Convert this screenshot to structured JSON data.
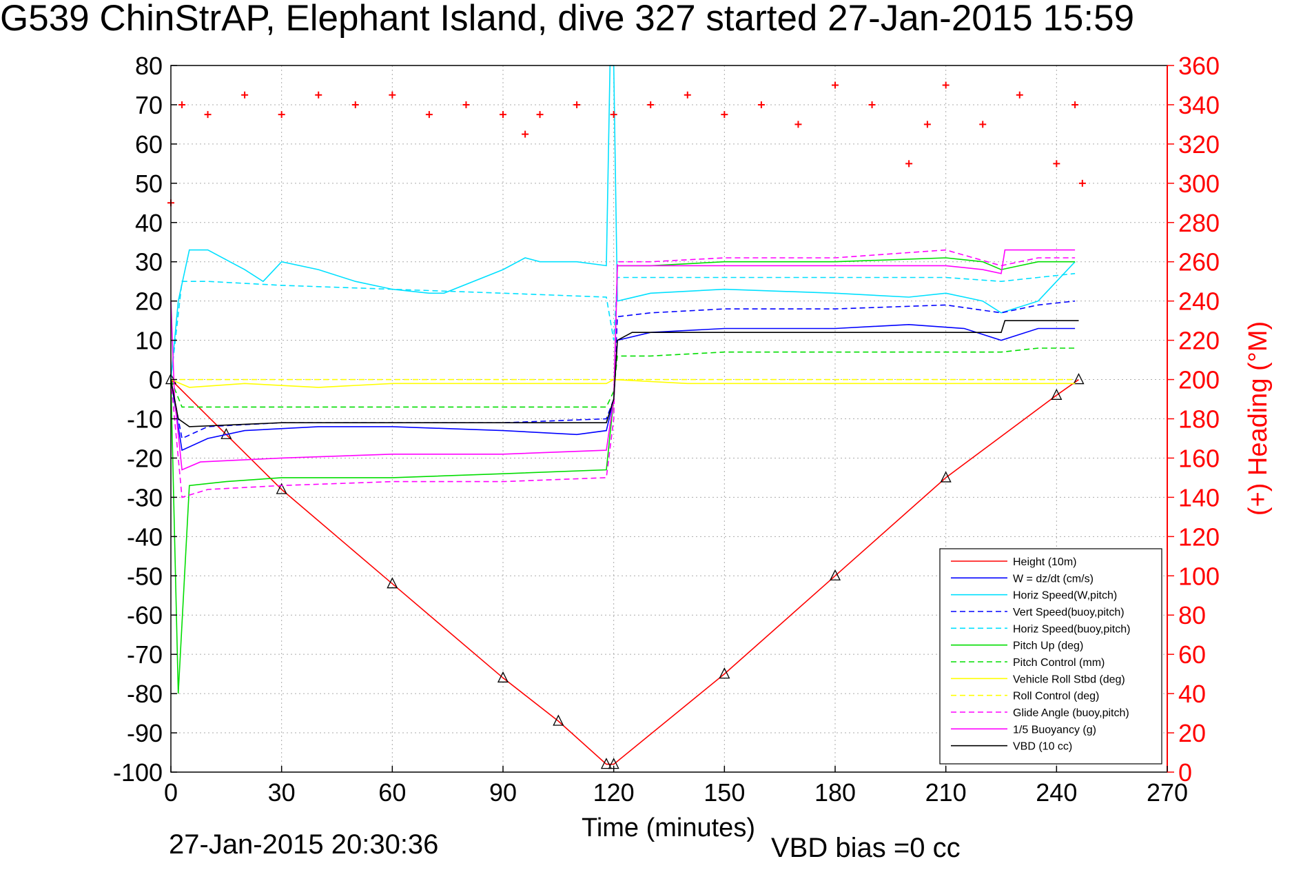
{
  "title": "G539 ChinStrAP, Elephant Island, dive 327 started 27-Jan-2015 15:59",
  "footer": {
    "timestamp": "27-Jan-2015 20:30:36",
    "vbd_bias": "VBD bias =0 cc"
  },
  "colors": {
    "red": "#ff0000",
    "blue": "#0000ff",
    "cyan": "#00e0ff",
    "green": "#00dd00",
    "yellow": "#ffff00",
    "magenta": "#ff00ff",
    "black": "#000000",
    "grid": "#aaaaaa"
  },
  "chart_data": {
    "type": "line",
    "xlabel": "Time (minutes)",
    "ylabel_left": "",
    "ylabel_right": "(+) Heading (°M)",
    "xlim": [
      0,
      270
    ],
    "ylim": [
      -100,
      80
    ],
    "ylim_right": [
      0,
      360
    ],
    "x_ticks": [
      "0",
      "30",
      "60",
      "90",
      "120",
      "150",
      "180",
      "210",
      "240",
      "270"
    ],
    "y_ticks": [
      "80",
      "70",
      "60",
      "50",
      "40",
      "30",
      "20",
      "10",
      "0",
      "-10",
      "-20",
      "-30",
      "-40",
      "-50",
      "-60",
      "-70",
      "-80",
      "-90",
      "-100"
    ],
    "y_ticks_right": [
      "360",
      "340",
      "320",
      "300",
      "280",
      "260",
      "240",
      "220",
      "200",
      "180",
      "160",
      "140",
      "120",
      "100",
      "80",
      "60",
      "40",
      "20",
      "0"
    ],
    "grid": true,
    "legend_position": "bottom-right",
    "series": [
      {
        "name": "Height (10m)",
        "color": "#ff0000",
        "style": "solid",
        "x": [
          0,
          15,
          30,
          60,
          90,
          105,
          118,
          120,
          150,
          180,
          210,
          240,
          246
        ],
        "y": [
          0,
          -14,
          -28,
          -52,
          -76,
          -87,
          -98,
          -98,
          -75,
          -50,
          -25,
          -4,
          0
        ]
      },
      {
        "name": "W = dz/dt (cm/s)",
        "color": "#0000ff",
        "style": "solid",
        "x": [
          0,
          3,
          10,
          20,
          40,
          60,
          90,
          110,
          118,
          120,
          121,
          130,
          150,
          180,
          200,
          215,
          225,
          235,
          245
        ],
        "y": [
          0,
          -18,
          -15,
          -13,
          -12,
          -12,
          -13,
          -14,
          -13,
          -5,
          10,
          12,
          13,
          13,
          14,
          13,
          10,
          13,
          13
        ]
      },
      {
        "name": "Horiz Speed(W,pitch)",
        "color": "#00e0ff",
        "style": "solid",
        "x": [
          0,
          2,
          5,
          10,
          20,
          25,
          30,
          40,
          50,
          60,
          70,
          74,
          90,
          96,
          100,
          110,
          118,
          119,
          120,
          121,
          130,
          150,
          180,
          200,
          210,
          220,
          225,
          235,
          245
        ],
        "y": [
          0,
          20,
          33,
          33,
          28,
          25,
          30,
          28,
          25,
          23,
          22,
          22,
          28,
          31,
          30,
          30,
          29,
          80,
          80,
          20,
          22,
          23,
          22,
          21,
          22,
          20,
          17,
          20,
          30
        ]
      },
      {
        "name": "Vert Speed(buoy,pitch)",
        "color": "#0000ff",
        "style": "dashed",
        "x": [
          0,
          3,
          10,
          30,
          60,
          90,
          118,
          120,
          121,
          130,
          150,
          180,
          210,
          225,
          235,
          245
        ],
        "y": [
          0,
          -15,
          -12,
          -11,
          -11,
          -11,
          -10,
          -5,
          16,
          17,
          18,
          18,
          19,
          17,
          19,
          20
        ]
      },
      {
        "name": "Horiz Speed(buoy,pitch)",
        "color": "#00e0ff",
        "style": "dashed",
        "x": [
          0,
          3,
          10,
          30,
          60,
          90,
          118,
          120,
          121,
          130,
          150,
          180,
          210,
          225,
          235,
          245
        ],
        "y": [
          0,
          25,
          25,
          24,
          23,
          22,
          21,
          10,
          26,
          26,
          26,
          26,
          26,
          25,
          26,
          27
        ]
      },
      {
        "name": "Pitch Up (deg)",
        "color": "#00dd00",
        "style": "solid",
        "x": [
          0,
          2,
          5,
          15,
          30,
          60,
          90,
          118,
          120,
          121,
          130,
          150,
          180,
          210,
          220,
          225,
          235,
          245
        ],
        "y": [
          0,
          -80,
          -27,
          -26,
          -25,
          -25,
          -24,
          -23,
          -5,
          29,
          29,
          30,
          30,
          31,
          30,
          28,
          30,
          30
        ]
      },
      {
        "name": "Pitch Control (mm)",
        "color": "#00dd00",
        "style": "dashed",
        "x": [
          0,
          3,
          10,
          60,
          118,
          120,
          121,
          130,
          150,
          180,
          210,
          225,
          235,
          245
        ],
        "y": [
          0,
          -7,
          -7,
          -7,
          -7,
          -3,
          6,
          6,
          7,
          7,
          7,
          7,
          8,
          8
        ]
      },
      {
        "name": "Vehicle Roll Stbd (deg)",
        "color": "#ffff00",
        "style": "solid",
        "x": [
          0,
          5,
          20,
          40,
          60,
          80,
          100,
          118,
          120,
          140,
          160,
          180,
          200,
          220,
          240,
          245
        ],
        "y": [
          0,
          -2,
          -1,
          -2,
          -1,
          -1,
          -1,
          -1,
          0,
          -1,
          -1,
          -1,
          -1,
          -1,
          -1,
          -1
        ]
      },
      {
        "name": "Roll Control (deg)",
        "color": "#ffff00",
        "style": "dashed",
        "x": [
          0,
          5,
          60,
          118,
          120,
          180,
          245
        ],
        "y": [
          0,
          0,
          0,
          0,
          0,
          0,
          0
        ]
      },
      {
        "name": "Glide Angle (buoy,pitch)",
        "color": "#ff00ff",
        "style": "dashed",
        "x": [
          0,
          3,
          10,
          30,
          60,
          90,
          118,
          120,
          121,
          130,
          150,
          180,
          210,
          225,
          235,
          245
        ],
        "y": [
          0,
          -30,
          -28,
          -27,
          -26,
          -26,
          -25,
          -10,
          30,
          30,
          31,
          31,
          33,
          29,
          31,
          31
        ]
      },
      {
        "name": "1/5 Buoyancy (g)",
        "color": "#ff00ff",
        "style": "solid",
        "x": [
          0,
          1,
          3,
          8,
          30,
          60,
          90,
          118,
          120,
          121,
          130,
          150,
          180,
          210,
          220,
          225,
          226,
          240,
          245
        ],
        "y": [
          20,
          -5,
          -23,
          -21,
          -20,
          -19,
          -19,
          -18,
          -5,
          29,
          29,
          29,
          29,
          29,
          28,
          27,
          33,
          33,
          33
        ]
      },
      {
        "name": "VBD (10 cc)",
        "color": "#000000",
        "style": "solid",
        "x": [
          0,
          2,
          5,
          30,
          60,
          90,
          118,
          120,
          121,
          125,
          150,
          180,
          210,
          225,
          226,
          246
        ],
        "y": [
          0,
          -10,
          -12,
          -11,
          -11,
          -11,
          -11,
          -5,
          10,
          12,
          12,
          12,
          12,
          12,
          15,
          15
        ]
      },
      {
        "name": "Heading",
        "color": "#ff0000",
        "style": "markers",
        "x": [
          0,
          3,
          10,
          20,
          30,
          40,
          50,
          60,
          70,
          80,
          90,
          96,
          100,
          110,
          120,
          130,
          140,
          150,
          160,
          170,
          180,
          190,
          200,
          205,
          210,
          220,
          230,
          240,
          245,
          247
        ],
        "y": [
          290,
          340,
          335,
          345,
          335,
          345,
          340,
          345,
          335,
          340,
          335,
          325,
          335,
          340,
          335,
          340,
          345,
          335,
          340,
          330,
          350,
          340,
          310,
          330,
          350,
          330,
          345,
          310,
          340,
          300
        ]
      }
    ],
    "annotations": {
      "roll_control_line": 0,
      "vbd_bias": "VBD bias =0 cc"
    }
  }
}
